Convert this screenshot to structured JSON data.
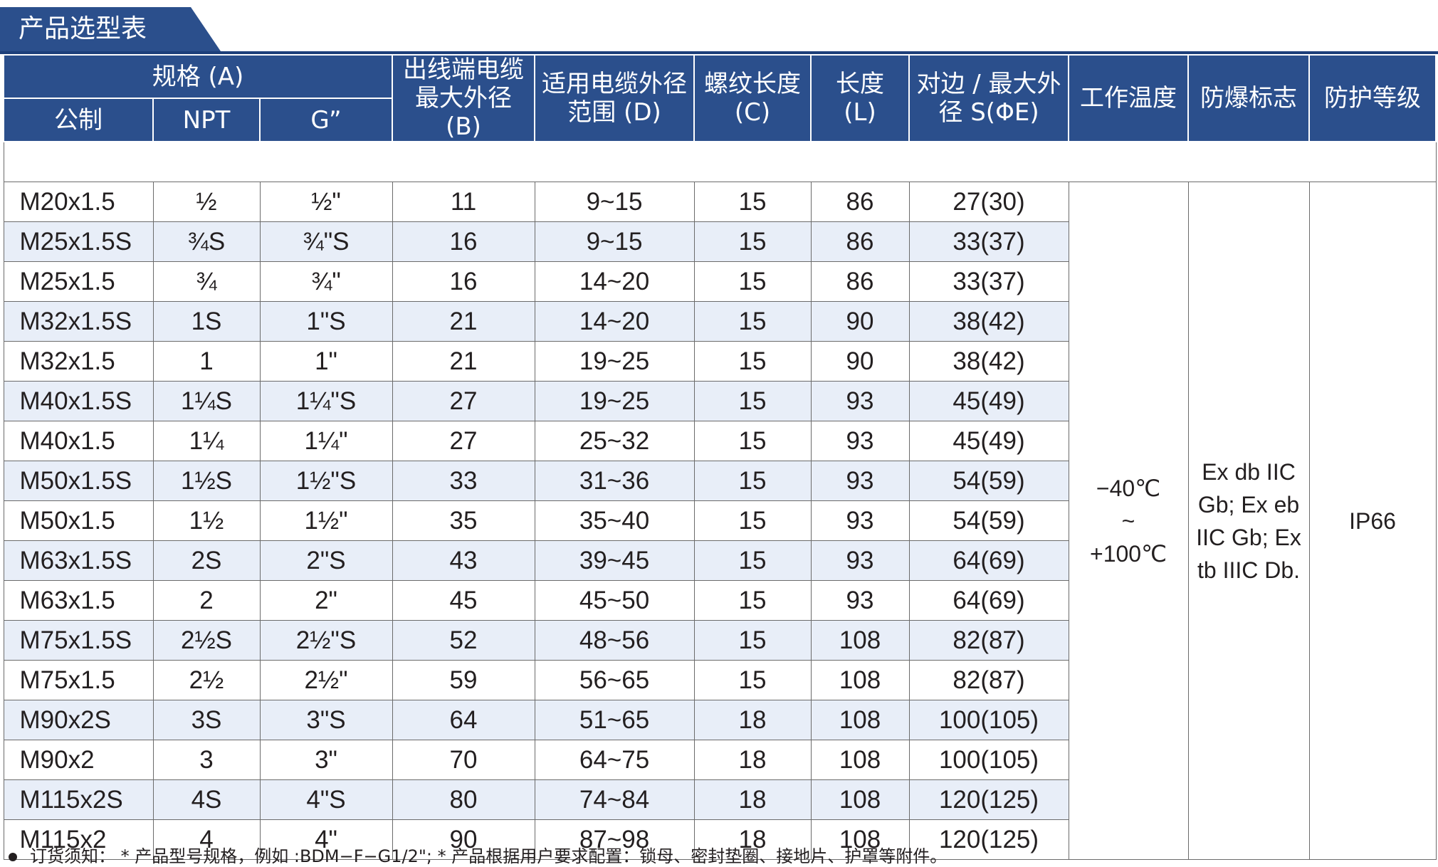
{
  "title": "产品选型表",
  "header": {
    "spec_group": "规格 (A)",
    "metric": "公制",
    "npt": "NPT",
    "g": "G”",
    "b": "出线端电缆最大外径 (B)",
    "d": "适用电缆外径范围 (D)",
    "c": "螺纹长度 (C)",
    "l": "长度 (L)",
    "s": "对边 / 最大外径 S(ΦE)",
    "temp": "工作温度",
    "ex": "防爆标志",
    "ip": "防护等级"
  },
  "rows": [
    [
      "M20x1.5",
      "½",
      "½\"",
      "11",
      "9~15",
      "15",
      "86",
      "27(30)"
    ],
    [
      "M25x1.5S",
      "¾S",
      "¾\"S",
      "16",
      "9~15",
      "15",
      "86",
      "33(37)"
    ],
    [
      "M25x1.5",
      "¾",
      "¾\"",
      "16",
      "14~20",
      "15",
      "86",
      "33(37)"
    ],
    [
      "M32x1.5S",
      "1S",
      "1\"S",
      "21",
      "14~20",
      "15",
      "90",
      "38(42)"
    ],
    [
      "M32x1.5",
      "1",
      "1\"",
      "21",
      "19~25",
      "15",
      "90",
      "38(42)"
    ],
    [
      "M40x1.5S",
      "1¼S",
      "1¼\"S",
      "27",
      "19~25",
      "15",
      "93",
      "45(49)"
    ],
    [
      "M40x1.5",
      "1¼",
      "1¼\"",
      "27",
      "25~32",
      "15",
      "93",
      "45(49)"
    ],
    [
      "M50x1.5S",
      "1½S",
      "1½\"S",
      "33",
      "31~36",
      "15",
      "93",
      "54(59)"
    ],
    [
      "M50x1.5",
      "1½",
      "1½\"",
      "35",
      "35~40",
      "15",
      "93",
      "54(59)"
    ],
    [
      "M63x1.5S",
      "2S",
      "2\"S",
      "43",
      "39~45",
      "15",
      "93",
      "64(69)"
    ],
    [
      "M63x1.5",
      "2",
      "2\"",
      "45",
      "45~50",
      "15",
      "93",
      "64(69)"
    ],
    [
      "M75x1.5S",
      "2½S",
      "2½\"S",
      "52",
      "48~56",
      "15",
      "108",
      "82(87)"
    ],
    [
      "M75x1.5",
      "2½",
      "2½\"",
      "59",
      "56~65",
      "15",
      "108",
      "82(87)"
    ],
    [
      "M90x2S",
      "3S",
      "3\"S",
      "64",
      "51~65",
      "18",
      "108",
      "100(105)"
    ],
    [
      "M90x2",
      "3",
      "3\"",
      "70",
      "64~75",
      "18",
      "108",
      "100(105)"
    ],
    [
      "M115x2S",
      "4S",
      "4\"S",
      "80",
      "74~84",
      "18",
      "108",
      "120(125)"
    ],
    [
      "M115x2",
      "4",
      "4\"",
      "90",
      "87~98",
      "18",
      "108",
      "120(125)"
    ]
  ],
  "temp_lines": [
    "−40℃",
    "~",
    "+100℃"
  ],
  "ex_lines": [
    "Ex db IIC",
    "Gb; Ex eb",
    "IIC Gb; Ex",
    "tb IIIC Db."
  ],
  "ip": "IP66",
  "note": "订货须知： * 产品型号规格，例如 :BDM−F−G1/2\";    * 产品根据用户要求配置：锁母、密封垫圈、接地片、护罩等附件。",
  "colors": {
    "header": "#2b4f8c",
    "shade": "#e8eef8"
  }
}
